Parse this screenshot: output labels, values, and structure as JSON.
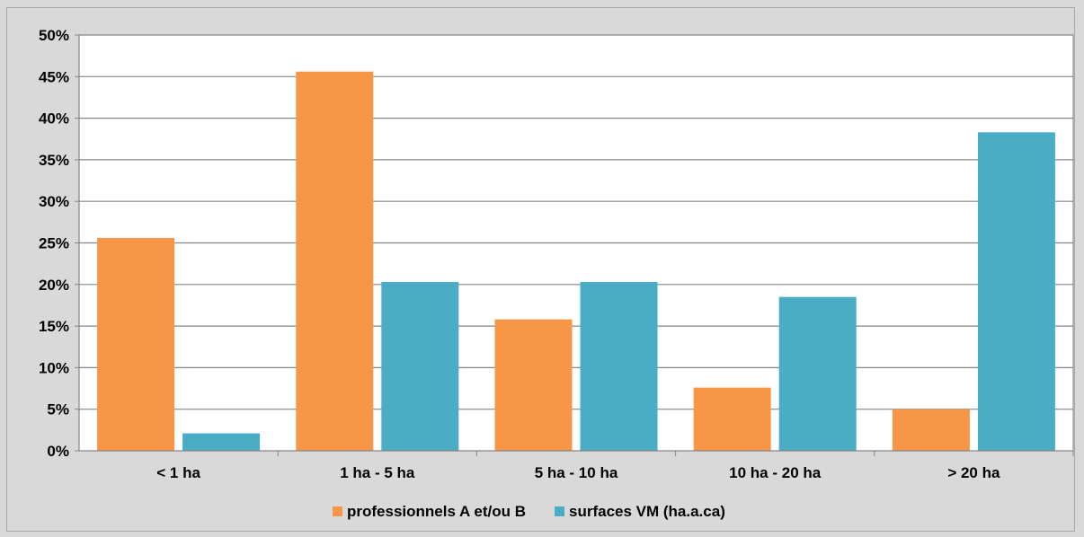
{
  "chart_data": {
    "type": "bar",
    "categories": [
      "< 1 ha",
      "1 ha - 5 ha",
      "5 ha - 10 ha",
      "10 ha - 20 ha",
      "> 20 ha"
    ],
    "series": [
      {
        "name": "professionnels A et/ou B",
        "values": [
          25.6,
          45.6,
          15.8,
          7.6,
          5.0
        ],
        "color": "#f79646"
      },
      {
        "name": "surfaces VM (ha.a.ca)",
        "values": [
          2.1,
          20.3,
          20.3,
          18.5,
          38.3
        ],
        "color": "#4bacc6"
      }
    ],
    "ylim": [
      0,
      50
    ],
    "yticks": [
      "0%",
      "5%",
      "10%",
      "15%",
      "20%",
      "25%",
      "30%",
      "35%",
      "40%",
      "45%",
      "50%"
    ],
    "grid": true,
    "legend_position": "bottom",
    "plot_background": "#ffffff",
    "page_background": "#d9d9d9"
  }
}
